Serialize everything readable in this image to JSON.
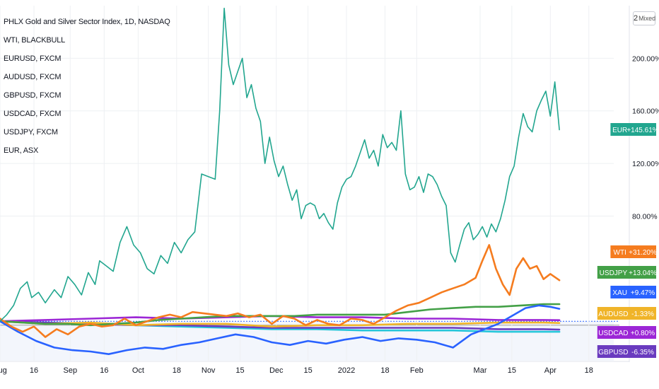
{
  "legend": {
    "items": [
      "PHLX Gold and Silver Sector Index, 1D, NASDAQ",
      "WTI, BLACKBULL",
      "EURUSD, FXCM",
      "AUDUSD, FXCM",
      "GBPUSD, FXCM",
      "USDCAD, FXCM",
      "USDJPY, FXCM",
      "EUR, ASX"
    ]
  },
  "scale_button": {
    "number": "2",
    "label": "Mixed"
  },
  "colors": {
    "EUR": "#22a68f",
    "WTI": "#f57c1f",
    "USDJPY": "#43a047",
    "XAU": "#2962ff",
    "AUDUSD": "#f0b429",
    "USDCAD": "#9c27d6",
    "GBPUSD": "#6a3bbf",
    "EURUSD": "#26c6da",
    "grid": "#eef0f3",
    "text": "#131722"
  },
  "chart_data": {
    "type": "line",
    "y_unit": "%",
    "ylim": [
      -30,
      240
    ],
    "grid": true,
    "y_ticks": [
      "80.00%",
      "120.00%",
      "160.00%",
      "200.00%"
    ],
    "y_tick_values": [
      80,
      120,
      160,
      200
    ],
    "x_ticks": [
      {
        "label": "Aug",
        "day": 0
      },
      {
        "label": "16",
        "day": 15
      },
      {
        "label": "Sep",
        "day": 31
      },
      {
        "label": "16",
        "day": 46
      },
      {
        "label": "Oct",
        "day": 61
      },
      {
        "label": "18",
        "day": 78
      },
      {
        "label": "Nov",
        "day": 92
      },
      {
        "label": "15",
        "day": 106
      },
      {
        "label": "Dec",
        "day": 122
      },
      {
        "label": "15",
        "day": 136
      },
      {
        "label": "2022",
        "day": 153
      },
      {
        "label": "18",
        "day": 170
      },
      {
        "label": "Feb",
        "day": 184
      },
      {
        "label": "Mar",
        "day": 212
      },
      {
        "label": "15",
        "day": 226
      },
      {
        "label": "Apr",
        "day": 243
      },
      {
        "label": "18",
        "day": 260
      }
    ],
    "x_range_days": [
      0,
      271
    ],
    "series": [
      {
        "name": "EUR",
        "badge": "EUR",
        "badge_value": "+145.61%",
        "key": "EUR",
        "x": [
          0,
          3,
          6,
          9,
          12,
          14,
          17,
          20,
          24,
          27,
          30,
          33,
          36,
          39,
          42,
          44,
          47,
          50,
          53,
          56,
          59,
          62,
          65,
          68,
          71,
          74,
          77,
          80,
          83,
          86,
          89,
          92,
          95,
          97,
          99,
          101,
          103,
          105,
          107,
          109,
          111,
          113,
          115,
          117,
          119,
          121,
          123,
          125,
          127,
          129,
          131,
          133,
          135,
          137,
          139,
          141,
          143,
          145,
          147,
          149,
          151,
          153,
          155,
          157,
          159,
          161,
          163,
          165,
          167,
          169,
          171,
          173,
          175,
          177,
          179,
          181,
          183,
          185,
          187,
          189,
          191,
          193,
          195,
          197,
          199,
          201,
          203,
          205,
          207,
          209,
          211,
          213,
          215,
          217,
          219,
          221,
          223,
          225,
          227,
          229,
          231,
          233,
          235,
          237,
          239,
          241,
          243,
          245,
          247
        ],
        "y": [
          0,
          5,
          12,
          25,
          30,
          18,
          22,
          14,
          24,
          18,
          34,
          28,
          20,
          37,
          28,
          46,
          42,
          38,
          60,
          72,
          58,
          52,
          40,
          36,
          50,
          44,
          60,
          52,
          62,
          68,
          112,
          110,
          108,
          160,
          238,
          195,
          180,
          190,
          200,
          170,
          180,
          162,
          152,
          120,
          140,
          122,
          110,
          118,
          104,
          92,
          100,
          78,
          88,
          90,
          88,
          78,
          82,
          75,
          70,
          90,
          102,
          108,
          110,
          118,
          128,
          138,
          124,
          130,
          118,
          142,
          132,
          136,
          130,
          160,
          112,
          100,
          102,
          110,
          98,
          112,
          110,
          104,
          95,
          88,
          52,
          45,
          58,
          70,
          75,
          62,
          66,
          72,
          64,
          74,
          68,
          78,
          92,
          110,
          118,
          140,
          158,
          148,
          144,
          160,
          168,
          175,
          156,
          182,
          145.61
        ]
      },
      {
        "name": "WTI",
        "badge": "WTI",
        "badge_value": "+31.20%",
        "key": "WTI",
        "x": [
          0,
          5,
          10,
          15,
          20,
          25,
          30,
          35,
          40,
          45,
          50,
          55,
          60,
          65,
          70,
          75,
          80,
          85,
          90,
          95,
          100,
          105,
          110,
          115,
          120,
          125,
          130,
          135,
          140,
          145,
          150,
          155,
          160,
          165,
          170,
          175,
          180,
          185,
          190,
          195,
          200,
          205,
          210,
          213,
          216,
          219,
          222,
          225,
          228,
          231,
          234,
          237,
          240,
          243,
          247
        ],
        "y": [
          2,
          -4,
          -8,
          -4,
          -12,
          -6,
          -10,
          -4,
          -2,
          -4,
          -3,
          2,
          -3,
          0,
          3,
          5,
          3,
          7,
          6,
          5,
          4,
          6,
          3,
          5,
          -2,
          4,
          2,
          -3,
          1,
          -2,
          -3,
          2,
          1,
          -2,
          3,
          8,
          12,
          14,
          18,
          22,
          25,
          28,
          33,
          46,
          58,
          40,
          28,
          20,
          40,
          48,
          40,
          42,
          32,
          36,
          31.2
        ]
      },
      {
        "name": "USDJPY",
        "badge": "USDJPY",
        "badge_value": "+13.04%",
        "key": "USDJPY",
        "x": [
          0,
          10,
          20,
          30,
          40,
          50,
          60,
          70,
          80,
          90,
          100,
          110,
          120,
          130,
          140,
          150,
          160,
          170,
          180,
          190,
          200,
          210,
          220,
          230,
          240,
          247
        ],
        "y": [
          0,
          -1,
          -2,
          -2,
          -3,
          -2,
          -1,
          1,
          2,
          3,
          4,
          4,
          4,
          4,
          5,
          5,
          5,
          5,
          7,
          9,
          10,
          11,
          11,
          12,
          13,
          13.04
        ]
      },
      {
        "name": "XAU",
        "badge": "XAU",
        "badge_value": "+9.47%",
        "key": "XAU",
        "x": [
          0,
          8,
          16,
          24,
          32,
          40,
          48,
          56,
          64,
          72,
          80,
          88,
          96,
          104,
          112,
          120,
          128,
          136,
          144,
          152,
          160,
          168,
          176,
          184,
          192,
          200,
          208,
          214,
          220,
          226,
          232,
          238,
          243,
          247
        ],
        "y": [
          0,
          -8,
          -15,
          -20,
          -22,
          -23,
          -25,
          -22,
          -20,
          -21,
          -18,
          -16,
          -13,
          -10,
          -12,
          -16,
          -18,
          -15,
          -17,
          -14,
          -12,
          -15,
          -13,
          -14,
          -16,
          -20,
          -10,
          -6,
          -2,
          4,
          10,
          12,
          11,
          9.47
        ]
      },
      {
        "name": "AUDUSD",
        "badge": "AUDUSD",
        "badge_value": "-1.33%",
        "key": "AUDUSD",
        "x": [
          0,
          20,
          40,
          60,
          80,
          100,
          120,
          140,
          160,
          180,
          200,
          220,
          240,
          247
        ],
        "y": [
          0,
          -2,
          -1,
          -3,
          -2,
          -2,
          -4,
          -3,
          -3,
          -2,
          -2,
          -1,
          -1,
          -1.33
        ]
      },
      {
        "name": "USDCAD",
        "badge": "USDCAD",
        "badge_value": "+0.80%",
        "key": "USDCAD",
        "x": [
          0,
          20,
          40,
          60,
          80,
          100,
          120,
          140,
          160,
          180,
          200,
          220,
          240,
          247
        ],
        "y": [
          0,
          1,
          2,
          3,
          2,
          3,
          4,
          3,
          3,
          2,
          2,
          1,
          1,
          0.8
        ]
      },
      {
        "name": "GBPUSD",
        "badge": "GBPUSD",
        "badge_value": "-6.35%",
        "key": "GBPUSD",
        "x": [
          0,
          20,
          40,
          60,
          80,
          100,
          120,
          140,
          160,
          180,
          200,
          220,
          240,
          247
        ],
        "y": [
          0,
          -1,
          -2,
          -3,
          -3,
          -4,
          -5,
          -5,
          -5,
          -5,
          -5,
          -6,
          -6,
          -6.35
        ]
      },
      {
        "name": "EURUSD",
        "key": "EURUSD",
        "x": [
          0,
          20,
          40,
          60,
          80,
          100,
          120,
          140,
          160,
          180,
          200,
          220,
          240,
          247
        ],
        "y": [
          0,
          -1,
          -2,
          -3,
          -4,
          -5,
          -6,
          -6,
          -7,
          -7,
          -7,
          -8,
          -8,
          -8
        ]
      }
    ]
  }
}
